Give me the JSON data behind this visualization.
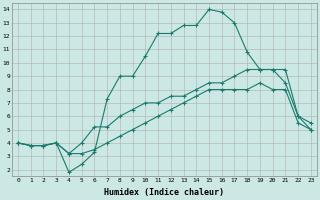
{
  "xlabel": "Humidex (Indice chaleur)",
  "bg_color": "#cce8e4",
  "line_color": "#1a7a6e",
  "xlim": [
    -0.5,
    23.5
  ],
  "ylim": [
    1.5,
    14.5
  ],
  "xticks": [
    0,
    1,
    2,
    3,
    4,
    5,
    6,
    7,
    8,
    9,
    10,
    11,
    12,
    13,
    14,
    15,
    16,
    17,
    18,
    19,
    20,
    21,
    22,
    23
  ],
  "yticks": [
    2,
    3,
    4,
    5,
    6,
    7,
    8,
    9,
    10,
    11,
    12,
    13,
    14
  ],
  "line1_x": [
    0,
    1,
    2,
    3,
    4,
    5,
    6,
    7,
    8,
    9,
    10,
    11,
    12,
    13,
    14,
    15,
    16,
    17,
    18,
    19,
    20,
    21,
    22,
    23
  ],
  "line1_y": [
    4,
    3.8,
    3.8,
    4,
    3.2,
    3.2,
    3.5,
    4.0,
    4.5,
    5.0,
    5.5,
    6.0,
    6.5,
    7.0,
    7.5,
    8.0,
    8.0,
    8.0,
    8.0,
    8.5,
    8.0,
    8.0,
    5.5,
    5.0
  ],
  "line2_x": [
    0,
    1,
    2,
    3,
    4,
    5,
    6,
    7,
    8,
    9,
    10,
    11,
    12,
    13,
    14,
    15,
    16,
    17,
    18,
    19,
    20,
    21,
    22,
    23
  ],
  "line2_y": [
    4,
    3.8,
    3.8,
    4,
    3.2,
    4.0,
    5.2,
    5.2,
    6.0,
    6.5,
    7.0,
    7.0,
    7.5,
    7.5,
    8.0,
    8.5,
    8.5,
    9.0,
    9.5,
    9.5,
    9.5,
    8.5,
    6.0,
    5.5
  ],
  "line3_x": [
    0,
    1,
    2,
    3,
    4,
    5,
    6,
    7,
    8,
    9,
    10,
    11,
    12,
    13,
    14,
    15,
    16,
    17,
    18,
    19,
    20,
    21,
    22,
    23
  ],
  "line3_y": [
    4,
    3.8,
    3.8,
    4,
    1.8,
    2.4,
    3.3,
    7.3,
    9.0,
    9.0,
    10.5,
    12.2,
    12.2,
    12.8,
    12.8,
    14.0,
    13.8,
    13.0,
    10.8,
    9.5,
    9.5,
    9.5,
    6.0,
    5.0
  ]
}
